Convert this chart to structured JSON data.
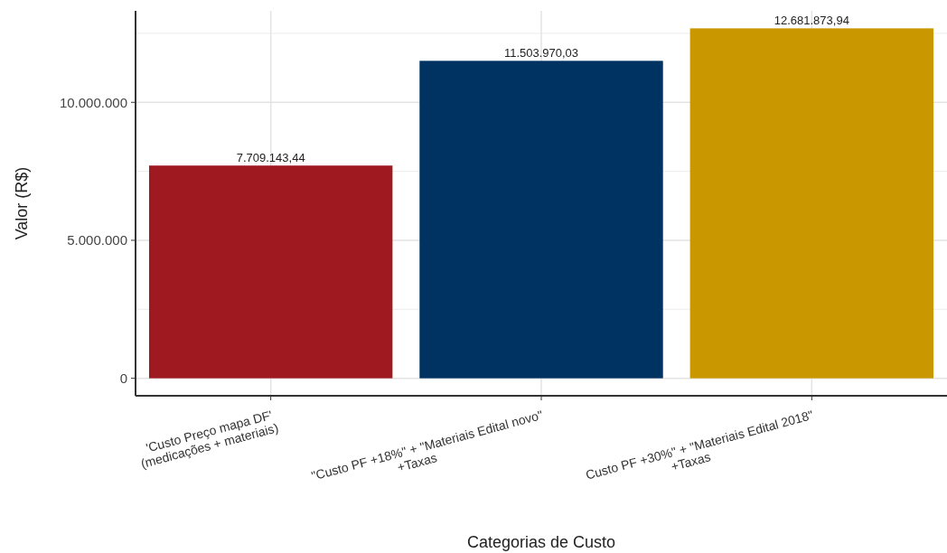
{
  "chart_data": {
    "type": "bar",
    "xlabel": "Categorias de Custo",
    "ylabel": "Valor (R$)",
    "categories": [
      "'Custo Preço mapa DF'\n(medicações + materiais)",
      "\"Custo PF +18%\" + \"Materiais Edital novo\"\n+Taxas",
      "Custo PF +30%\" + \"Materiais Edital 2018\"\n+Taxas"
    ],
    "values": [
      7709143.44,
      11503970.03,
      12681873.94
    ],
    "colors": [
      "#9e1a20",
      "#003262",
      "#c99700"
    ],
    "value_labels": [
      "7.709.143,44",
      "11.503.970,03",
      "12.681.873,94"
    ],
    "ylim": [
      -634094,
      13315968
    ],
    "yticks": [
      {
        "value": 0,
        "label": "0"
      },
      {
        "value": 5000000,
        "label": "5.000.000"
      },
      {
        "value": 10000000,
        "label": "10.000.000"
      }
    ],
    "grid": true
  }
}
